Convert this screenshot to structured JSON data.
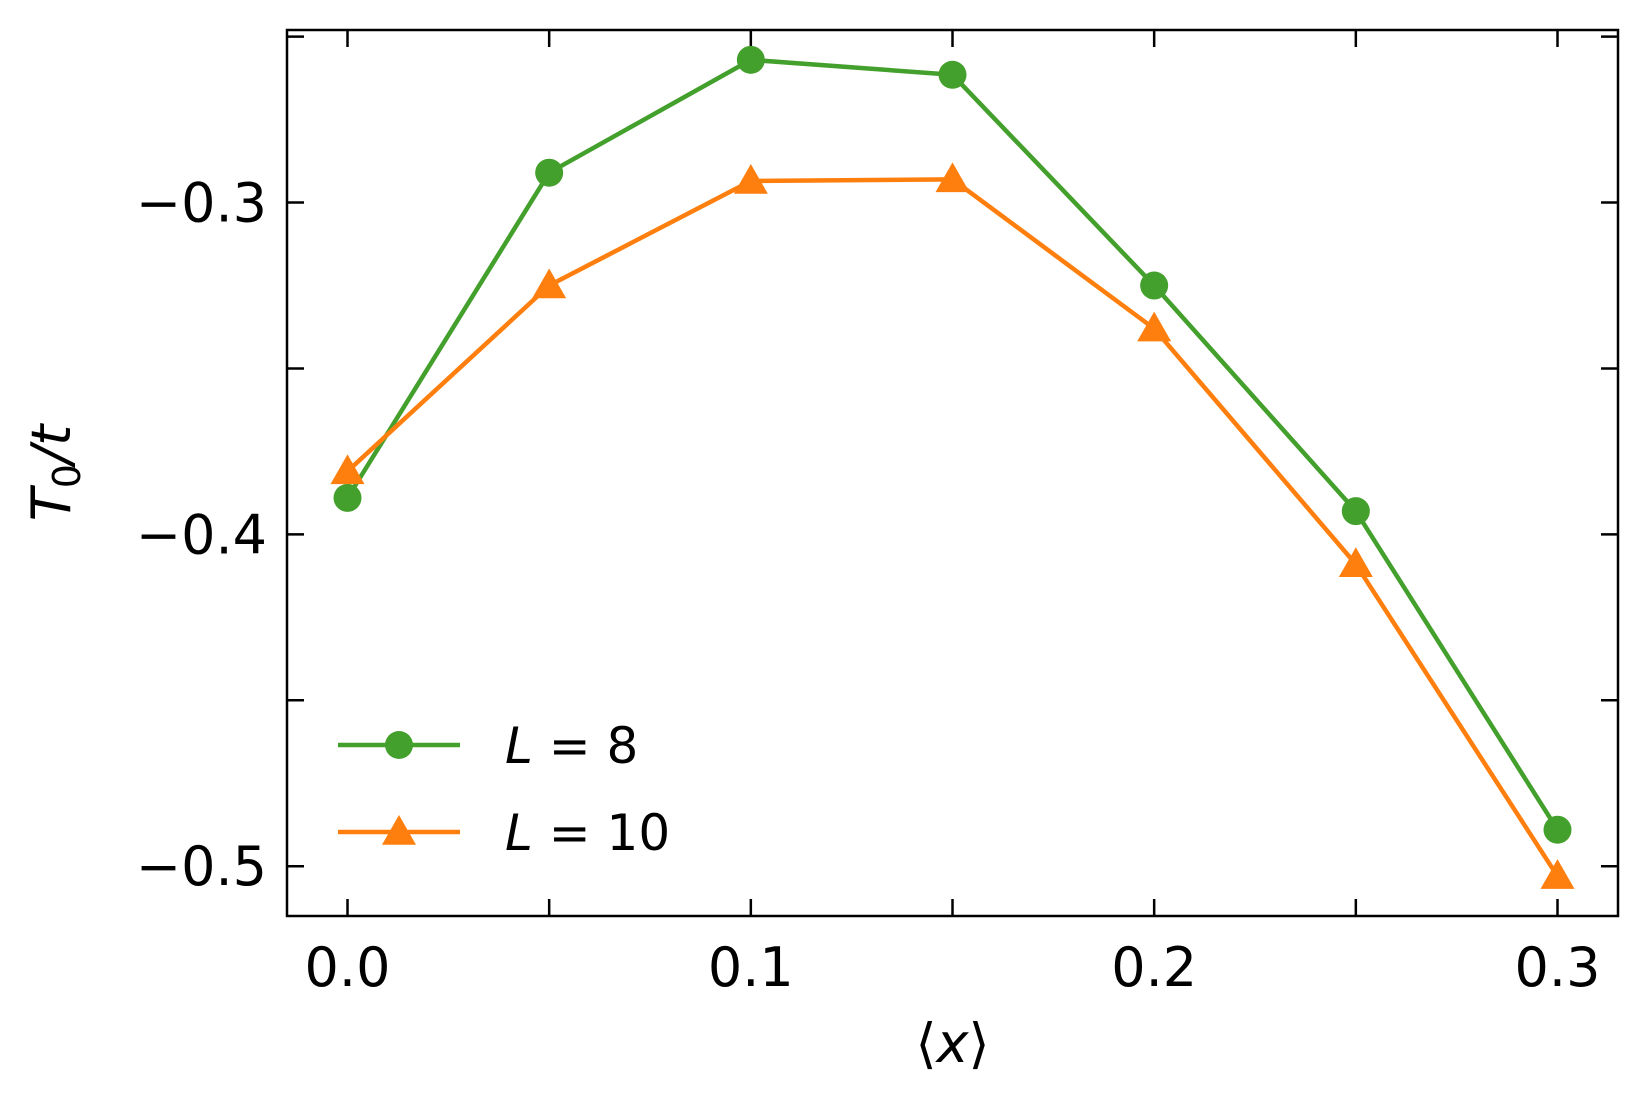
{
  "chart_data": {
    "type": "line",
    "xlabel_parts": [
      "⟨",
      "x",
      "⟩"
    ],
    "ylabel_parts": {
      "main": "T",
      "sub": "0",
      "rest": "/t"
    },
    "xlim": [
      -0.015,
      0.315
    ],
    "ylim": [
      -0.515,
      -0.248
    ],
    "xticks": [
      0.0,
      0.05,
      0.1,
      0.15,
      0.2,
      0.25,
      0.3
    ],
    "xtick_labels": [
      {
        "value": 0.0,
        "label": "0.0"
      },
      {
        "value": 0.1,
        "label": "0.1"
      },
      {
        "value": 0.2,
        "label": "0.2"
      },
      {
        "value": 0.3,
        "label": "0.3"
      }
    ],
    "yticks": [
      -0.5,
      -0.45,
      -0.4,
      -0.35,
      -0.3,
      -0.25
    ],
    "ytick_labels": [
      {
        "value": -0.3,
        "label": "−0.3"
      },
      {
        "value": -0.4,
        "label": "−0.4"
      },
      {
        "value": -0.5,
        "label": "−0.5"
      }
    ],
    "legend_position": "lower-left",
    "x": [
      0.0,
      0.05,
      0.1,
      0.15,
      0.2,
      0.25,
      0.3
    ],
    "series": [
      {
        "legend_parts": {
          "var": "L",
          "eq": " = ",
          "val": "8"
        },
        "marker": "circle",
        "color": "#44a02c",
        "values": [
          -0.389,
          -0.291,
          -0.257,
          -0.2615,
          -0.325,
          -0.393,
          -0.489
        ]
      },
      {
        "legend_parts": {
          "var": "L",
          "eq": " = ",
          "val": "10"
        },
        "marker": "triangle",
        "color": "#ff7f0e",
        "values": [
          -0.381,
          -0.325,
          -0.2935,
          -0.293,
          -0.338,
          -0.409,
          -0.503
        ]
      }
    ]
  }
}
